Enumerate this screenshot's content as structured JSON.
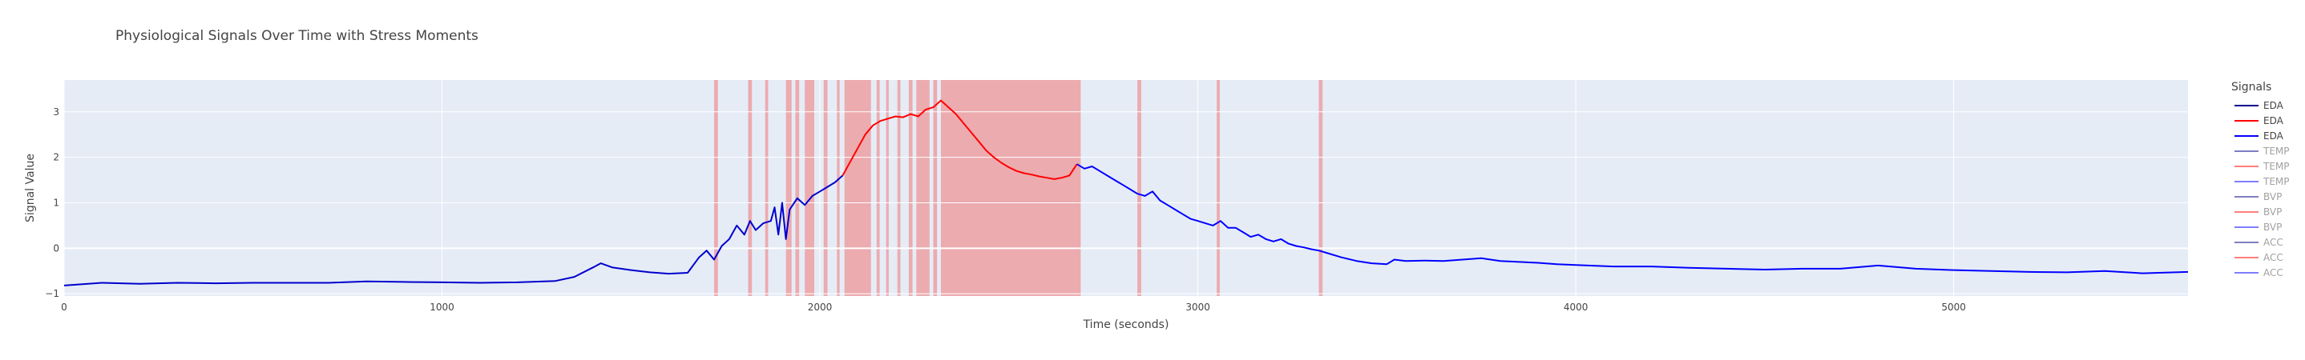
{
  "chart_data": {
    "type": "line",
    "title": "Physiological Signals Over Time with Stress Moments",
    "xlabel": "Time (seconds)",
    "ylabel": "Signal Value",
    "xlim": [
      0,
      5620
    ],
    "ylim": [
      -1.05,
      3.7
    ],
    "x_ticks": [
      0,
      1000,
      2000,
      3000,
      4000,
      5000
    ],
    "x_tick_labels": [
      "0",
      "1000",
      "2000",
      "3000",
      "4000",
      "5000"
    ],
    "y_ticks": [
      -1,
      0,
      1,
      2,
      3
    ],
    "y_tick_labels": [
      "−1",
      "0",
      "1",
      "2",
      "3"
    ],
    "grid": true,
    "legend": {
      "title": "Signals",
      "placement": "right",
      "entries": [
        {
          "label": "EDA",
          "color": "#00008b",
          "active": true
        },
        {
          "label": "EDA",
          "color": "#ff0000",
          "active": true
        },
        {
          "label": "EDA",
          "color": "#0000ff",
          "active": true
        },
        {
          "label": "TEMP",
          "color": "#00008b",
          "active": false
        },
        {
          "label": "TEMP",
          "color": "#ff0000",
          "active": false
        },
        {
          "label": "TEMP",
          "color": "#0000ff",
          "active": false
        },
        {
          "label": "BVP",
          "color": "#00008b",
          "active": false
        },
        {
          "label": "BVP",
          "color": "#ff0000",
          "active": false
        },
        {
          "label": "BVP",
          "color": "#0000ff",
          "active": false
        },
        {
          "label": "ACC",
          "color": "#00008b",
          "active": false
        },
        {
          "label": "ACC",
          "color": "#ff0000",
          "active": false
        },
        {
          "label": "ACC",
          "color": "#0000ff",
          "active": false
        }
      ]
    },
    "stress_regions": [
      [
        1720,
        1730
      ],
      [
        1810,
        1820
      ],
      [
        1855,
        1863
      ],
      [
        1910,
        1925
      ],
      [
        1935,
        1945
      ],
      [
        1960,
        1985
      ],
      [
        2010,
        2020
      ],
      [
        2045,
        2052
      ],
      [
        2065,
        2135
      ],
      [
        2150,
        2158
      ],
      [
        2175,
        2182
      ],
      [
        2205,
        2213
      ],
      [
        2235,
        2245
      ],
      [
        2255,
        2290
      ],
      [
        2300,
        2310
      ],
      [
        2320,
        2690
      ],
      [
        2840,
        2850
      ],
      [
        3050,
        3058
      ],
      [
        3320,
        3330
      ]
    ],
    "stress_color": "#f08080",
    "series": [
      {
        "name": "EDA",
        "color": "#0000cd",
        "x": [
          0,
          100,
          200,
          300,
          400,
          500,
          600,
          700,
          800,
          900,
          1000,
          1100,
          1200,
          1300,
          1350,
          1400,
          1420,
          1450,
          1500,
          1550,
          1600,
          1650,
          1680,
          1700,
          1720,
          1740,
          1760,
          1780,
          1800,
          1815,
          1830,
          1850,
          1870,
          1880,
          1890,
          1900,
          1910,
          1920,
          1940,
          1960,
          1980,
          2000,
          2020,
          2040,
          2060
        ],
        "y": [
          -0.82,
          -0.76,
          -0.78,
          -0.76,
          -0.77,
          -0.76,
          -0.76,
          -0.76,
          -0.73,
          -0.74,
          -0.75,
          -0.76,
          -0.75,
          -0.72,
          -0.63,
          -0.42,
          -0.33,
          -0.42,
          -0.48,
          -0.53,
          -0.56,
          -0.54,
          -0.2,
          -0.05,
          -0.25,
          0.05,
          0.2,
          0.5,
          0.3,
          0.6,
          0.4,
          0.55,
          0.6,
          0.9,
          0.3,
          1.0,
          0.2,
          0.85,
          1.1,
          0.95,
          1.15,
          1.25,
          1.35,
          1.45,
          1.6
        ]
      },
      {
        "name": "EDA",
        "color": "#ff0000",
        "x": [
          2060,
          2080,
          2100,
          2120,
          2140,
          2160,
          2180,
          2200,
          2220,
          2240,
          2260,
          2280,
          2300,
          2320,
          2340,
          2360,
          2380,
          2400,
          2420,
          2440,
          2460,
          2480,
          2500,
          2520,
          2540,
          2560,
          2580,
          2600,
          2620,
          2640,
          2660,
          2680
        ],
        "y": [
          1.6,
          1.9,
          2.2,
          2.5,
          2.7,
          2.8,
          2.85,
          2.9,
          2.88,
          2.95,
          2.9,
          3.05,
          3.1,
          3.25,
          3.1,
          2.95,
          2.75,
          2.55,
          2.35,
          2.15,
          2.0,
          1.88,
          1.78,
          1.7,
          1.65,
          1.62,
          1.58,
          1.55,
          1.52,
          1.55,
          1.6,
          1.85
        ]
      },
      {
        "name": "EDA",
        "color": "#0000ff",
        "x": [
          2680,
          2700,
          2720,
          2740,
          2760,
          2780,
          2800,
          2820,
          2840,
          2860,
          2880,
          2900,
          2920,
          2940,
          2960,
          2980,
          3000,
          3020,
          3040,
          3060,
          3080,
          3100,
          3120,
          3140,
          3160,
          3180,
          3200,
          3220,
          3240,
          3260,
          3280,
          3300,
          3320,
          3340,
          3380,
          3420,
          3460,
          3500,
          3520,
          3550,
          3600,
          3650,
          3700,
          3750,
          3800,
          3850,
          3900,
          3950,
          4000,
          4100,
          4200,
          4300,
          4400,
          4500,
          4600,
          4700,
          4800,
          4900,
          5000,
          5100,
          5200,
          5300,
          5400,
          5500,
          5620
        ],
        "y": [
          1.85,
          1.75,
          1.8,
          1.7,
          1.6,
          1.5,
          1.4,
          1.3,
          1.2,
          1.15,
          1.25,
          1.05,
          0.95,
          0.85,
          0.75,
          0.65,
          0.6,
          0.55,
          0.5,
          0.6,
          0.45,
          0.45,
          0.35,
          0.25,
          0.3,
          0.2,
          0.15,
          0.2,
          0.1,
          0.05,
          0.02,
          -0.02,
          -0.05,
          -0.1,
          -0.2,
          -0.28,
          -0.33,
          -0.35,
          -0.25,
          -0.28,
          -0.27,
          -0.28,
          -0.25,
          -0.22,
          -0.28,
          -0.3,
          -0.32,
          -0.35,
          -0.37,
          -0.4,
          -0.4,
          -0.43,
          -0.45,
          -0.47,
          -0.45,
          -0.45,
          -0.38,
          -0.45,
          -0.48,
          -0.5,
          -0.52,
          -0.53,
          -0.5,
          -0.55,
          -0.52
        ]
      }
    ]
  }
}
